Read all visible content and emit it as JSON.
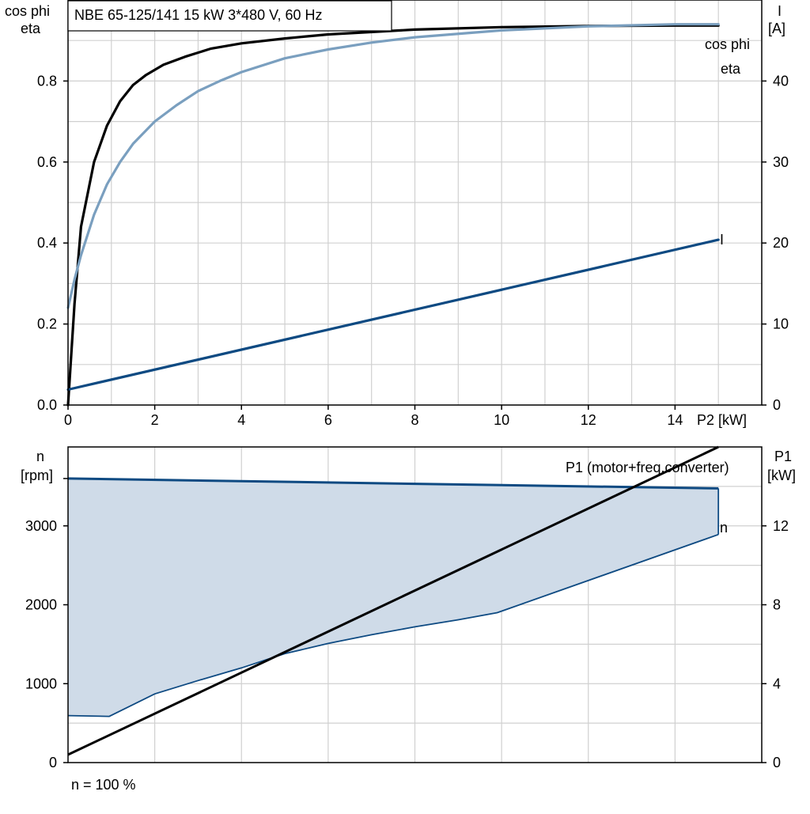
{
  "colors": {
    "eta": "#000000",
    "cos_phi": "#7a9fbf",
    "current": "#0e4a82",
    "speed_band_fill": "#cfdbe8",
    "speed_band_stroke": "#0e4a82",
    "p1": "#000000",
    "grid": "#d0d0d0"
  },
  "chart_data": [
    {
      "type": "line",
      "title": "NBE 65-125/141   15 kW   3*480 V, 60 Hz",
      "xlabel": "P2 [kW]",
      "ylabel_left_line1": "cos phi",
      "ylabel_left_line2": "eta",
      "ylabel_right_line1": "I",
      "ylabel_right_line2": "[A]",
      "xlim": [
        0,
        16
      ],
      "ylim_left": [
        0,
        1.0
      ],
      "ylim_right": [
        0,
        50
      ],
      "x_ticks": [
        "0",
        "2",
        "4",
        "6",
        "8",
        "10",
        "12",
        "14"
      ],
      "y_left_ticks": [
        "0.0",
        "0.2",
        "0.4",
        "0.6",
        "0.8"
      ],
      "y_right_ticks": [
        "0",
        "10",
        "20",
        "30",
        "40"
      ],
      "series": [
        {
          "name": "eta",
          "axis": "left",
          "color": "#000000",
          "x": [
            0,
            0.15,
            0.3,
            0.6,
            0.9,
            1.2,
            1.5,
            1.8,
            2.2,
            2.7,
            3.3,
            4,
            5,
            6,
            8,
            10,
            12,
            14,
            15
          ],
          "y": [
            0.0,
            0.25,
            0.44,
            0.6,
            0.69,
            0.75,
            0.79,
            0.815,
            0.84,
            0.86,
            0.88,
            0.893,
            0.905,
            0.915,
            0.927,
            0.933,
            0.936,
            0.937,
            0.937
          ]
        },
        {
          "name": "cos phi",
          "axis": "left",
          "color": "#7a9fbf",
          "x": [
            0,
            0.15,
            0.3,
            0.6,
            0.9,
            1.2,
            1.5,
            2,
            2.5,
            3,
            3.5,
            4,
            5,
            6,
            7,
            8,
            10,
            12,
            14,
            15
          ],
          "y": [
            0.24,
            0.31,
            0.37,
            0.47,
            0.545,
            0.6,
            0.645,
            0.7,
            0.74,
            0.775,
            0.8,
            0.822,
            0.856,
            0.878,
            0.895,
            0.908,
            0.925,
            0.935,
            0.94,
            0.94
          ]
        },
        {
          "name": "I",
          "axis": "right",
          "color": "#0e4a82",
          "x": [
            0,
            15
          ],
          "y": [
            1.9,
            20.4
          ]
        }
      ]
    },
    {
      "type": "area",
      "footer": "n = 100 %",
      "ylabel_left_line1": "n",
      "ylabel_left_line2": "[rpm]",
      "ylabel_right_line1": "P1",
      "ylabel_right_line2": "[kW]",
      "xlim": [
        0,
        16
      ],
      "ylim_left": [
        0,
        4000
      ],
      "ylim_right": [
        0,
        16
      ],
      "y_left_ticks": [
        "0",
        "1000",
        "2000",
        "3000"
      ],
      "y_right_ticks": [
        "0",
        "4",
        "8",
        "12"
      ],
      "series": [
        {
          "name": "n",
          "axis": "left",
          "color": "#0e4a82",
          "upper": {
            "x": [
              0,
              15
            ],
            "y": [
              3600,
              3475
            ]
          },
          "lower": {
            "x": [
              0,
              0.95,
              2,
              3,
              4,
              5,
              6,
              7,
              8,
              9,
              9.9,
              15
            ],
            "y": [
              595,
              585,
              870,
              1040,
              1200,
              1380,
              1510,
              1620,
              1720,
              1810,
              1900,
              2890
            ]
          }
        },
        {
          "name": "P1 (motor+freq.converter)",
          "axis": "right",
          "color": "#000000",
          "x": [
            0,
            15
          ],
          "y": [
            0.4,
            16
          ]
        }
      ]
    }
  ]
}
